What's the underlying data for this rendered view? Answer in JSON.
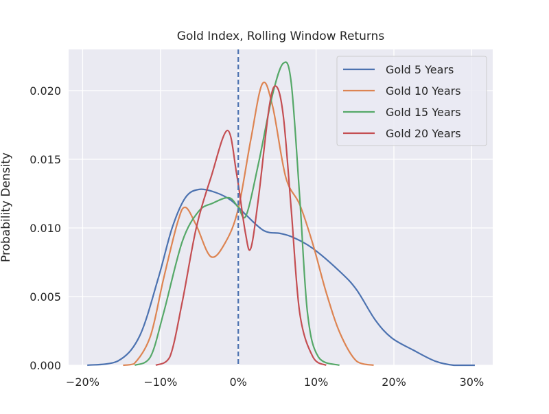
{
  "chart_data": {
    "type": "line",
    "title": "Gold Index, Rolling Window Returns",
    "xlabel": "",
    "ylabel": "Probability Density",
    "xlim": [
      -21.8,
      32.7
    ],
    "ylim": [
      0,
      0.023
    ],
    "grid": true,
    "legend_position": "top-right",
    "x_ticks": [
      -20,
      -10,
      0,
      10,
      20,
      30
    ],
    "x_tick_labels": [
      "−20%",
      "−10%",
      "0%",
      "10%",
      "20%",
      "30%"
    ],
    "y_ticks": [
      0,
      0.005,
      0.01,
      0.015,
      0.02
    ],
    "y_tick_labels": [
      "0.000",
      "0.005",
      "0.010",
      "0.015",
      "0.020"
    ],
    "vline": {
      "x": 0,
      "style": "dashed",
      "color": "#4c72b0"
    },
    "series": [
      {
        "name": "Gold 5 Years",
        "color": "#4c72b0",
        "x": [
          -19.4,
          -15.5,
          -12.7,
          -10.3,
          -8.5,
          -6.8,
          -5.1,
          -3.0,
          -0.9,
          0.9,
          3.3,
          5.4,
          7.1,
          9.6,
          13.1,
          15.2,
          17.6,
          19.7,
          22.5,
          25.3,
          27.7,
          30.4
        ],
        "y": [
          0,
          0.0003,
          0.0021,
          0.0063,
          0.01,
          0.0122,
          0.0128,
          0.0126,
          0.012,
          0.011,
          0.0098,
          0.0096,
          0.0093,
          0.0085,
          0.0068,
          0.0055,
          0.0033,
          0.002,
          0.0011,
          0.0003,
          0,
          0
        ]
      },
      {
        "name": "Gold 10 Years",
        "color": "#dd8452",
        "x": [
          -14.8,
          -13.4,
          -11.3,
          -9.6,
          -7.8,
          -6.8,
          -5.4,
          -3.5,
          -1.6,
          0,
          1.6,
          3.1,
          4.4,
          6.1,
          7.9,
          9.6,
          11.3,
          13.1,
          15.2,
          17.4
        ],
        "y": [
          0,
          0.0001,
          0.0021,
          0.0063,
          0.0104,
          0.0115,
          0.0102,
          0.0079,
          0.009,
          0.0114,
          0.0164,
          0.0205,
          0.0189,
          0.0137,
          0.0117,
          0.0088,
          0.0053,
          0.0023,
          0.0003,
          0
        ]
      },
      {
        "name": "Gold 15 Years",
        "color": "#55a868",
        "x": [
          -13.3,
          -11.3,
          -9.6,
          -7.2,
          -5.1,
          -3.3,
          -1.2,
          0,
          1.0,
          2.6,
          4.4,
          5.8,
          6.8,
          7.9,
          8.9,
          10.3,
          13.0
        ],
        "y": [
          0,
          0.0006,
          0.0038,
          0.009,
          0.0112,
          0.0118,
          0.0122,
          0.0115,
          0.0109,
          0.0147,
          0.0197,
          0.022,
          0.0206,
          0.0122,
          0.0038,
          0.0006,
          0
        ]
      },
      {
        "name": "Gold 20 Years",
        "color": "#c44e52",
        "x": [
          -10.6,
          -8.8,
          -7.2,
          -5.4,
          -3.5,
          -1.4,
          -0.2,
          0.9,
          1.6,
          2.6,
          4.0,
          4.9,
          5.8,
          6.8,
          7.9,
          9.6,
          11.3
        ],
        "y": [
          0,
          0.0006,
          0.0046,
          0.01,
          0.0137,
          0.0171,
          0.0139,
          0.0097,
          0.0085,
          0.0122,
          0.0189,
          0.0203,
          0.0181,
          0.0114,
          0.0038,
          0.0006,
          0
        ]
      }
    ]
  }
}
